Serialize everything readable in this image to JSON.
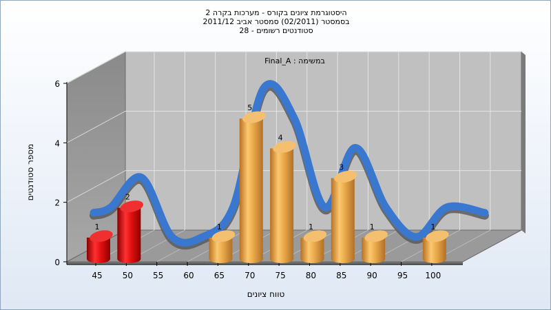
{
  "titles": {
    "line1": "היסטוגרמת ציונים בקורס - מערכות בקרה 2",
    "line2": "בסמסטר  (02/2011)  סמסטר אביב 2011/12",
    "line3": "סטודנטים רשומים - 28"
  },
  "chart_data": {
    "type": "bar",
    "title": "היסטוגרמת ציונים בקורס - מערכות בקרה 2",
    "subtitle": "בסמסטר  (02/2011)  סמסטר אביב 2011/12 / סטודנטים רשומים - 28",
    "legend_label": "Final_A : במשימה",
    "xlabel": "טווח ציונים",
    "ylabel": "מספר סטודנטים",
    "x_ticks": [
      "45",
      "50",
      "55",
      "60",
      "65",
      "70",
      "75",
      "80",
      "85",
      "90",
      "95",
      "100"
    ],
    "y_ticks": [
      "0",
      "2",
      "4",
      "6"
    ],
    "ylim": [
      0,
      6
    ],
    "series": [
      {
        "values": [
          1,
          2,
          0,
          0,
          1,
          5,
          4,
          1,
          3,
          1,
          0,
          1
        ],
        "colors": [
          "red",
          "red",
          "gold",
          "gold",
          "gold",
          "gold",
          "gold",
          "gold",
          "gold",
          "gold",
          "gold",
          "gold"
        ]
      }
    ],
    "grid": true,
    "bar_colors": {
      "red": "#e01010",
      "gold": "#e8a848"
    },
    "curve_color": "#3a78d0",
    "curve_shadow_color": "#5a5a5a"
  }
}
